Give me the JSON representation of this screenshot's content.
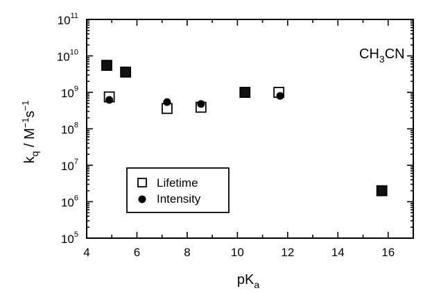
{
  "chart_data": {
    "type": "scatter",
    "title": "",
    "annotation": {
      "base": "CH",
      "sub1": "3",
      "rest": "CN"
    },
    "xlabel": {
      "base": "pK",
      "sub": "a"
    },
    "ylabel": {
      "k": "k",
      "q": "q",
      "slash": " / M",
      "e1": "−1",
      "s": "s",
      "e2": "−1"
    },
    "xlim": [
      4,
      17
    ],
    "ylim_log10": [
      5,
      11
    ],
    "y_scale": "log",
    "x_ticks": [
      4,
      6,
      8,
      10,
      12,
      14,
      16
    ],
    "y_ticks_exponents": [
      5,
      6,
      7,
      8,
      9,
      10,
      11
    ],
    "y_tick_base": "10",
    "legend_position": "lower-left",
    "series": [
      {
        "name": "Lifetime",
        "marker": "open-square",
        "points": [
          {
            "x": 4.8,
            "y": 5500000000.0,
            "filled_overlap": true
          },
          {
            "x": 4.9,
            "y": 750000000.0
          },
          {
            "x": 5.55,
            "y": 3600000000.0,
            "filled_overlap": true
          },
          {
            "x": 7.2,
            "y": 360000000.0
          },
          {
            "x": 8.55,
            "y": 390000000.0
          },
          {
            "x": 10.3,
            "y": 1000000000.0,
            "filled_overlap": true
          },
          {
            "x": 11.65,
            "y": 1000000000.0
          },
          {
            "x": 15.75,
            "y": 2000000.0,
            "filled_overlap": true
          }
        ]
      },
      {
        "name": "Intensity",
        "marker": "filled-circle",
        "points": [
          {
            "x": 4.9,
            "y": 620000000.0
          },
          {
            "x": 7.2,
            "y": 540000000.0
          },
          {
            "x": 8.55,
            "y": 480000000.0
          },
          {
            "x": 11.7,
            "y": 800000000.0
          }
        ]
      }
    ]
  }
}
